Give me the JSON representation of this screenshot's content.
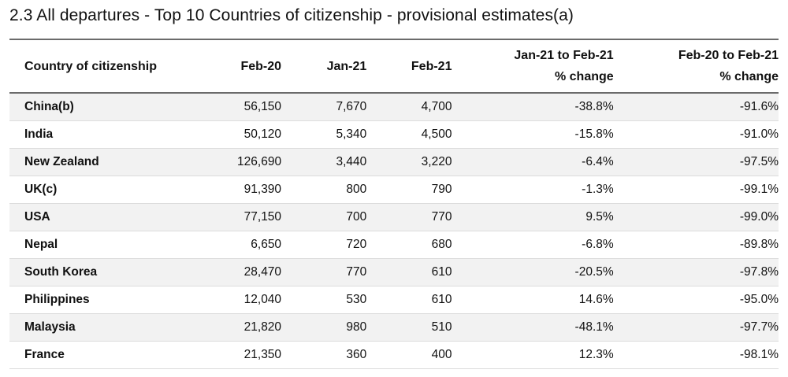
{
  "title": "2.3 All departures - Top 10 Countries of citizenship - provisional estimates(a)",
  "headers": {
    "country": "Country of citizenship",
    "feb20": "Feb-20",
    "jan21": "Jan-21",
    "feb21": "Feb-21",
    "jan21_feb21_line1": "Jan-21 to Feb-21",
    "jan21_feb21_line2": "% change",
    "feb20_feb21_line1": "Feb-20 to Feb-21",
    "feb20_feb21_line2": "% change"
  },
  "rows": [
    {
      "country": "China(b)",
      "feb20": "56,150",
      "jan21": "7,670",
      "feb21": "4,700",
      "chg_jan_feb": "-38.8%",
      "chg_feb_feb": "-91.6%"
    },
    {
      "country": "India",
      "feb20": "50,120",
      "jan21": "5,340",
      "feb21": "4,500",
      "chg_jan_feb": "-15.8%",
      "chg_feb_feb": "-91.0%"
    },
    {
      "country": "New Zealand",
      "feb20": "126,690",
      "jan21": "3,440",
      "feb21": "3,220",
      "chg_jan_feb": "-6.4%",
      "chg_feb_feb": "-97.5%"
    },
    {
      "country": "UK(c)",
      "feb20": "91,390",
      "jan21": "800",
      "feb21": "790",
      "chg_jan_feb": "-1.3%",
      "chg_feb_feb": "-99.1%"
    },
    {
      "country": "USA",
      "feb20": "77,150",
      "jan21": "700",
      "feb21": "770",
      "chg_jan_feb": "9.5%",
      "chg_feb_feb": "-99.0%"
    },
    {
      "country": "Nepal",
      "feb20": "6,650",
      "jan21": "720",
      "feb21": "680",
      "chg_jan_feb": "-6.8%",
      "chg_feb_feb": "-89.8%"
    },
    {
      "country": "South Korea",
      "feb20": "28,470",
      "jan21": "770",
      "feb21": "610",
      "chg_jan_feb": "-20.5%",
      "chg_feb_feb": "-97.8%"
    },
    {
      "country": "Philippines",
      "feb20": "12,040",
      "jan21": "530",
      "feb21": "610",
      "chg_jan_feb": "14.6%",
      "chg_feb_feb": "-95.0%"
    },
    {
      "country": "Malaysia",
      "feb20": "21,820",
      "jan21": "980",
      "feb21": "510",
      "chg_jan_feb": "-48.1%",
      "chg_feb_feb": "-97.7%"
    },
    {
      "country": "France",
      "feb20": "21,350",
      "jan21": "360",
      "feb21": "400",
      "chg_jan_feb": "12.3%",
      "chg_feb_feb": "-98.1%"
    }
  ]
}
